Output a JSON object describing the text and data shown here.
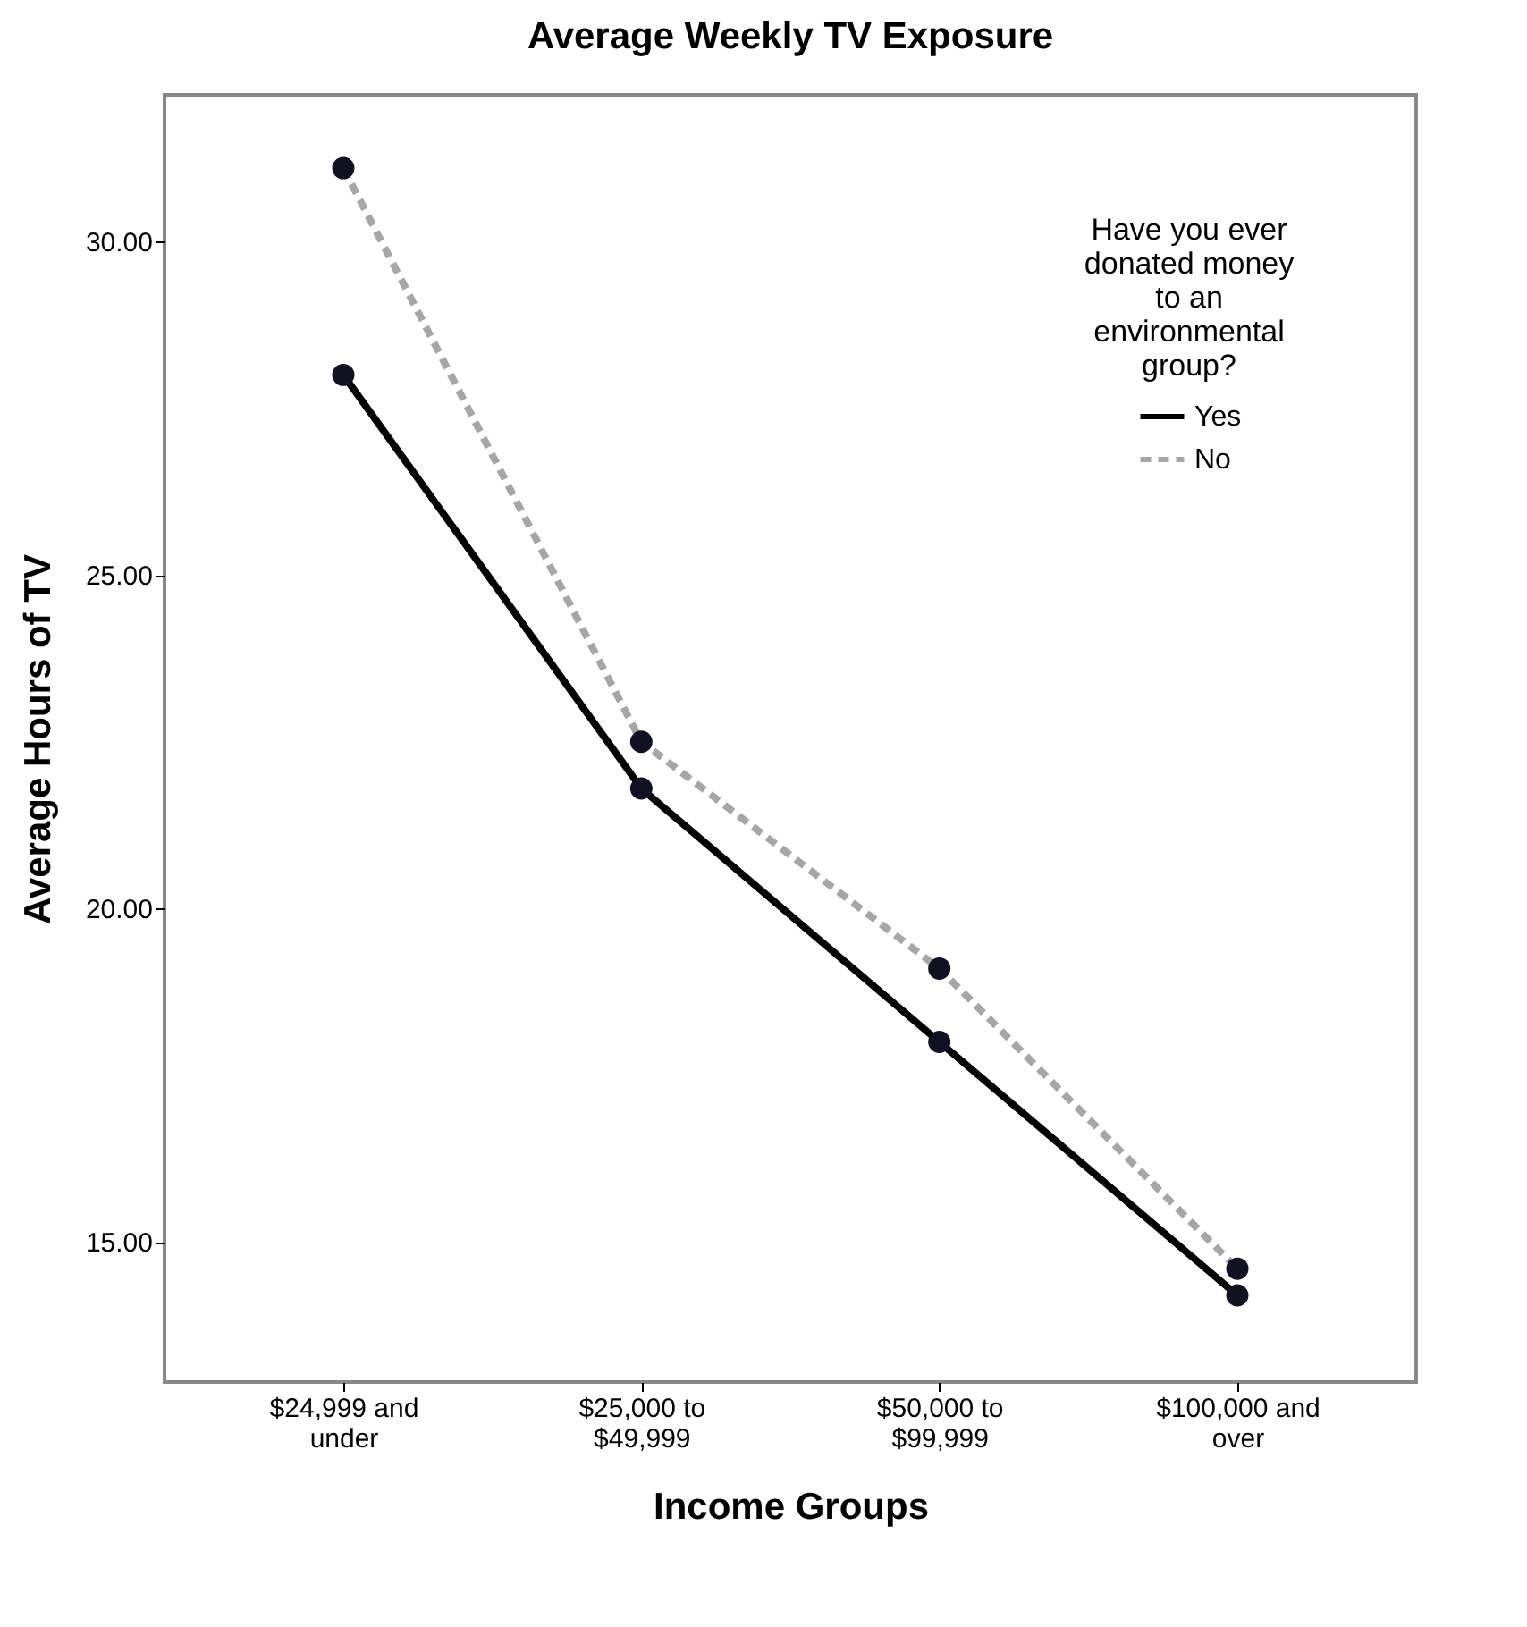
{
  "chart_data": {
    "type": "line",
    "title": "Average Weekly TV Exposure",
    "xlabel": "Income Groups",
    "ylabel": "Average Hours of TV",
    "legend_title": "Have you ever donated money to an environmental group?",
    "categories": [
      "$24,999 and under",
      "$25,000 to $49,999",
      "$50,000 to $99,999",
      "$100,000 and over"
    ],
    "series": [
      {
        "name": "Yes",
        "color": "#000000",
        "line_style": "solid",
        "values": [
          28.0,
          21.8,
          18.0,
          14.2
        ]
      },
      {
        "name": "No",
        "color": "#a6a6a6",
        "line_style": "dashed",
        "values": [
          31.1,
          22.5,
          19.1,
          14.6
        ]
      }
    ],
    "ylim": [
      12.9,
      32.2
    ],
    "yticks": [
      {
        "value": 15,
        "label": "15.00"
      },
      {
        "value": 20,
        "label": "20.00"
      },
      {
        "value": 25,
        "label": "25.00"
      },
      {
        "value": 30,
        "label": "30.00"
      }
    ],
    "grid": false,
    "legend": "top right",
    "marker": "circle"
  }
}
